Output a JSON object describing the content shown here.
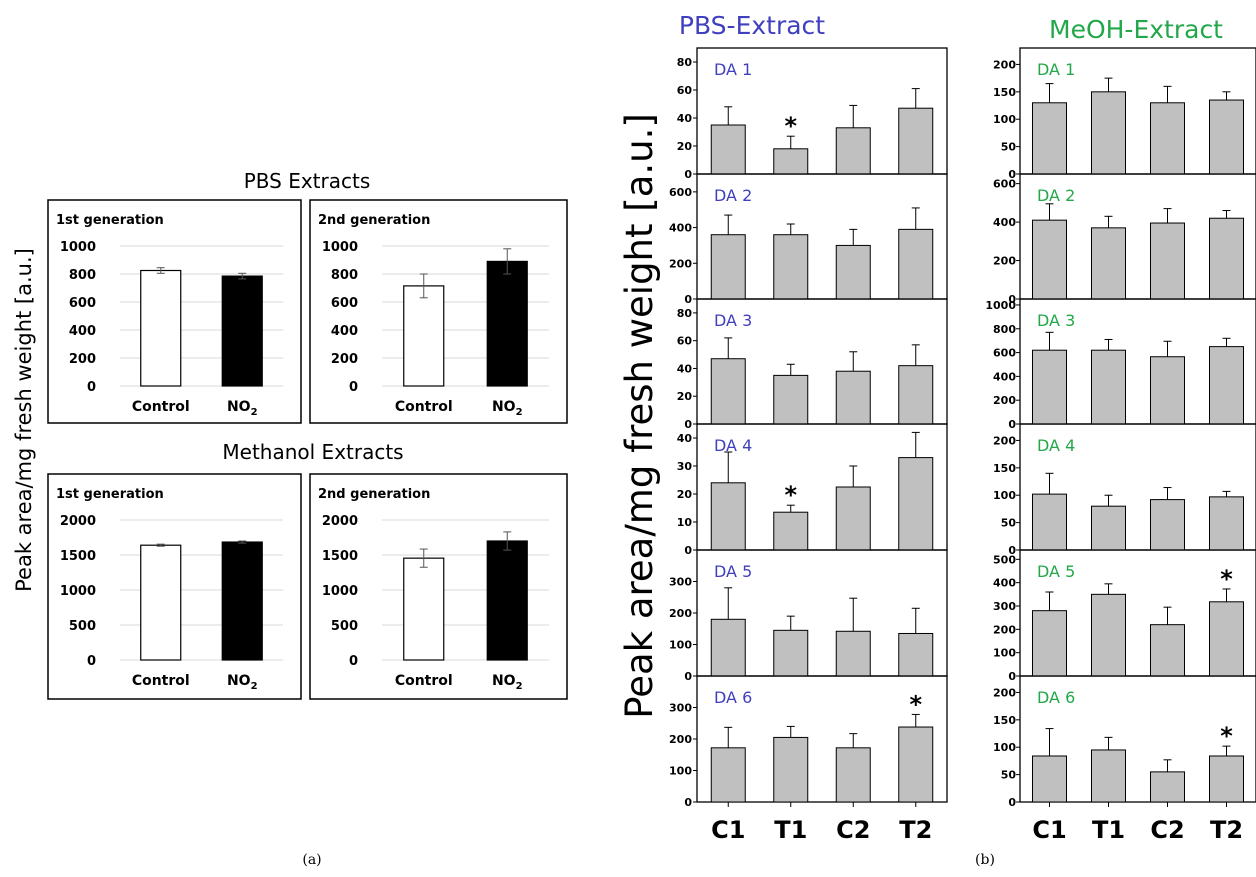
{
  "panel_labels": {
    "a": "(a)",
    "b": "(b)"
  },
  "panel_a": {
    "y_label": "Peak area/mg fresh weight [a.u.]",
    "sections": [
      {
        "title": "PBS Extracts"
      },
      {
        "title": "Methanol Extracts"
      }
    ]
  },
  "panel_b": {
    "y_label": "Peak area/mg fresh weight [a.u.]",
    "columns": [
      {
        "title": "PBS-Extract",
        "color": "#3f3fbf"
      },
      {
        "title": "MeOH-Extract",
        "color": "#22a84a"
      }
    ],
    "categories": [
      "C1",
      "T1",
      "C2",
      "T2"
    ]
  },
  "colors": {
    "control_bar": "#ffffff",
    "no2_bar": "#000000",
    "gray_bar": "#c0c0c0"
  },
  "chart_data": [
    {
      "type": "bar",
      "panel": "a",
      "section": "PBS Extracts",
      "subtitle": "1st generation",
      "categories": [
        "Control",
        "NO2"
      ],
      "values": [
        825,
        785
      ],
      "errors": [
        20,
        20
      ],
      "ylim": [
        0,
        1000
      ],
      "yticks": [
        0,
        200,
        400,
        600,
        800,
        1000
      ],
      "grid": true
    },
    {
      "type": "bar",
      "panel": "a",
      "section": "PBS Extracts",
      "subtitle": "2nd generation",
      "categories": [
        "Control",
        "NO2"
      ],
      "values": [
        715,
        890
      ],
      "errors": [
        85,
        90
      ],
      "ylim": [
        0,
        1000
      ],
      "yticks": [
        0,
        200,
        400,
        600,
        800,
        1000
      ],
      "grid": true
    },
    {
      "type": "bar",
      "panel": "a",
      "section": "Methanol Extracts",
      "subtitle": "1st generation",
      "categories": [
        "Control",
        "NO2"
      ],
      "values": [
        1640,
        1685
      ],
      "errors": [
        15,
        15
      ],
      "ylim": [
        0,
        2000
      ],
      "yticks": [
        0,
        500,
        1000,
        1500,
        2000
      ],
      "grid": true
    },
    {
      "type": "bar",
      "panel": "a",
      "section": "Methanol Extracts",
      "subtitle": "2nd generation",
      "categories": [
        "Control",
        "NO2"
      ],
      "values": [
        1455,
        1700
      ],
      "errors": [
        130,
        130
      ],
      "ylim": [
        0,
        2000
      ],
      "yticks": [
        0,
        500,
        1000,
        1500,
        2000
      ],
      "grid": true
    },
    {
      "type": "bar",
      "panel": "b",
      "column": "PBS-Extract",
      "label": "DA 1",
      "categories": [
        "C1",
        "T1",
        "C2",
        "T2"
      ],
      "values": [
        35,
        18,
        33,
        47
      ],
      "errors": [
        13,
        9,
        16,
        14
      ],
      "significant": [
        false,
        true,
        false,
        false
      ],
      "ylim": [
        0,
        90
      ],
      "yticks": [
        0,
        20,
        40,
        60,
        80
      ]
    },
    {
      "type": "bar",
      "panel": "b",
      "column": "PBS-Extract",
      "label": "DA 2",
      "categories": [
        "C1",
        "T1",
        "C2",
        "T2"
      ],
      "values": [
        360,
        360,
        300,
        390
      ],
      "errors": [
        110,
        60,
        90,
        120
      ],
      "significant": [
        false,
        false,
        false,
        false
      ],
      "ylim": [
        0,
        700
      ],
      "yticks": [
        0,
        200,
        400,
        600
      ]
    },
    {
      "type": "bar",
      "panel": "b",
      "column": "PBS-Extract",
      "label": "DA 3",
      "categories": [
        "C1",
        "T1",
        "C2",
        "T2"
      ],
      "values": [
        47,
        35,
        38,
        42
      ],
      "errors": [
        15,
        8,
        14,
        15
      ],
      "significant": [
        false,
        false,
        false,
        false
      ],
      "ylim": [
        0,
        90
      ],
      "yticks": [
        0,
        20,
        40,
        60,
        80
      ]
    },
    {
      "type": "bar",
      "panel": "b",
      "column": "PBS-Extract",
      "label": "DA 4",
      "categories": [
        "C1",
        "T1",
        "C2",
        "T2"
      ],
      "values": [
        24,
        13.5,
        22.5,
        33
      ],
      "errors": [
        11,
        2.5,
        7.5,
        9
      ],
      "significant": [
        false,
        true,
        false,
        false
      ],
      "ylim": [
        0,
        45
      ],
      "yticks": [
        0,
        10,
        20,
        30,
        40
      ]
    },
    {
      "type": "bar",
      "panel": "b",
      "column": "PBS-Extract",
      "label": "DA 5",
      "categories": [
        "C1",
        "T1",
        "C2",
        "T2"
      ],
      "values": [
        180,
        145,
        142,
        135
      ],
      "errors": [
        100,
        45,
        105,
        80
      ],
      "significant": [
        false,
        false,
        false,
        false
      ],
      "ylim": [
        0,
        400
      ],
      "yticks": [
        0,
        100,
        200,
        300
      ]
    },
    {
      "type": "bar",
      "panel": "b",
      "column": "PBS-Extract",
      "label": "DA 6",
      "categories": [
        "C1",
        "T1",
        "C2",
        "T2"
      ],
      "values": [
        172,
        205,
        172,
        238
      ],
      "errors": [
        65,
        35,
        45,
        40
      ],
      "significant": [
        false,
        false,
        false,
        true
      ],
      "ylim": [
        0,
        400
      ],
      "yticks": [
        0,
        100,
        200,
        300
      ]
    },
    {
      "type": "bar",
      "panel": "b",
      "column": "MeOH-Extract",
      "label": "DA 1",
      "categories": [
        "C1",
        "T1",
        "C2",
        "T2"
      ],
      "values": [
        130,
        150,
        130,
        135
      ],
      "errors": [
        35,
        25,
        30,
        15
      ],
      "significant": [
        false,
        false,
        false,
        false
      ],
      "ylim": [
        0,
        230
      ],
      "yticks": [
        0,
        50,
        100,
        150,
        200
      ]
    },
    {
      "type": "bar",
      "panel": "b",
      "column": "MeOH-Extract",
      "label": "DA 2",
      "categories": [
        "C1",
        "T1",
        "C2",
        "T2"
      ],
      "values": [
        410,
        370,
        395,
        420
      ],
      "errors": [
        85,
        60,
        75,
        40
      ],
      "significant": [
        false,
        false,
        false,
        false
      ],
      "ylim": [
        0,
        650
      ],
      "yticks": [
        0,
        200,
        400,
        600
      ]
    },
    {
      "type": "bar",
      "panel": "b",
      "column": "MeOH-Extract",
      "label": "DA 3",
      "categories": [
        "C1",
        "T1",
        "C2",
        "T2"
      ],
      "values": [
        620,
        620,
        565,
        650
      ],
      "errors": [
        150,
        90,
        130,
        70
      ],
      "significant": [
        false,
        false,
        false,
        false
      ],
      "ylim": [
        0,
        1050
      ],
      "yticks": [
        0,
        200,
        400,
        600,
        800,
        1000
      ]
    },
    {
      "type": "bar",
      "panel": "b",
      "column": "MeOH-Extract",
      "label": "DA 4",
      "categories": [
        "C1",
        "T1",
        "C2",
        "T2"
      ],
      "values": [
        102,
        80,
        92,
        97
      ],
      "errors": [
        38,
        20,
        22,
        10
      ],
      "significant": [
        false,
        false,
        false,
        false
      ],
      "ylim": [
        0,
        230
      ],
      "yticks": [
        0,
        50,
        100,
        150,
        200
      ]
    },
    {
      "type": "bar",
      "panel": "b",
      "column": "MeOH-Extract",
      "label": "DA 5",
      "categories": [
        "C1",
        "T1",
        "C2",
        "T2"
      ],
      "values": [
        280,
        350,
        220,
        318
      ],
      "errors": [
        80,
        45,
        75,
        55
      ],
      "significant": [
        false,
        false,
        false,
        true
      ],
      "ylim": [
        0,
        540
      ],
      "yticks": [
        0,
        100,
        200,
        300,
        400,
        500
      ]
    },
    {
      "type": "bar",
      "panel": "b",
      "column": "MeOH-Extract",
      "label": "DA 6",
      "categories": [
        "C1",
        "T1",
        "C2",
        "T2"
      ],
      "values": [
        84,
        95,
        55,
        84
      ],
      "errors": [
        50,
        23,
        22,
        18
      ],
      "significant": [
        false,
        false,
        false,
        true
      ],
      "ylim": [
        0,
        230
      ],
      "yticks": [
        0,
        50,
        100,
        150,
        200
      ]
    }
  ]
}
